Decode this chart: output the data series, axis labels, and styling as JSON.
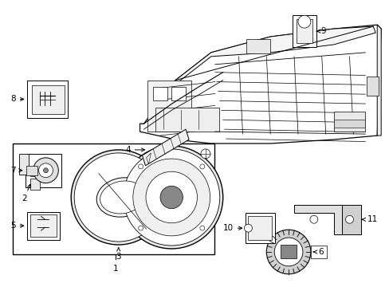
{
  "background_color": "#ffffff",
  "fig_width": 4.89,
  "fig_height": 3.6,
  "dpi": 100,
  "line_color": "#000000",
  "text_color": "#000000",
  "part_font_size": 7.5
}
